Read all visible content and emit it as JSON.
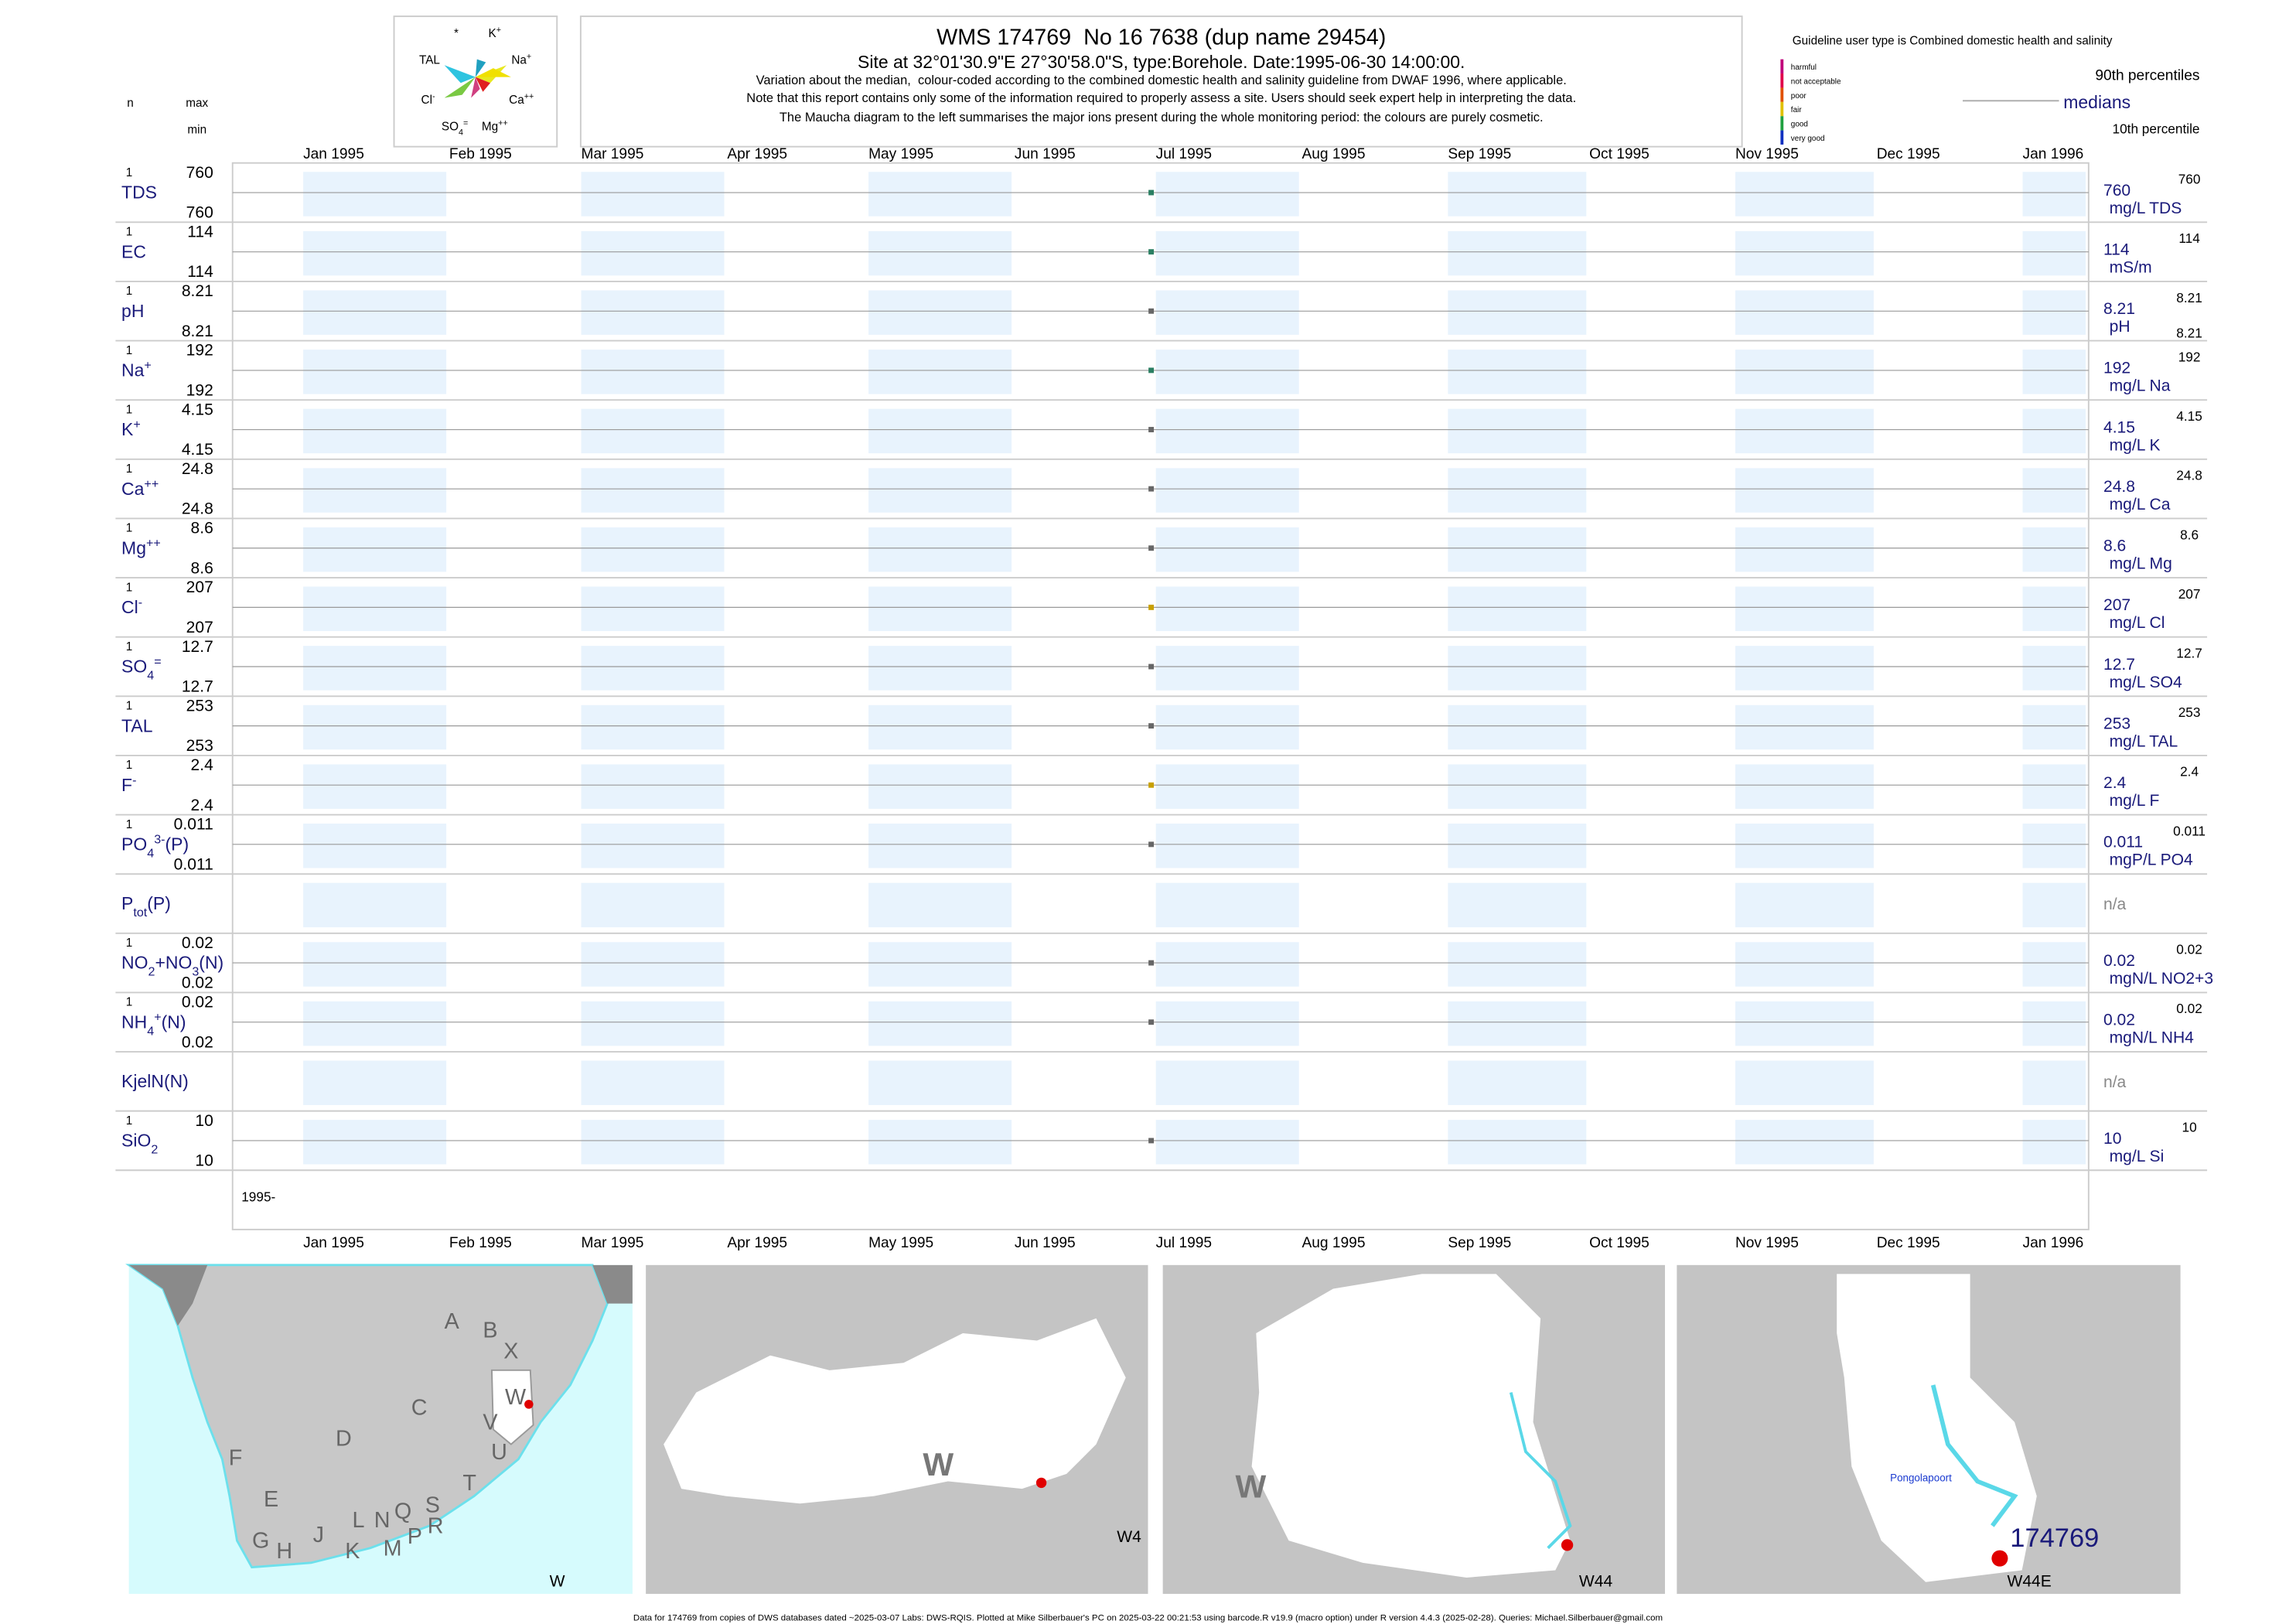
{
  "header": {
    "title": "WMS 174769  No 16 7638 (dup name 29454)",
    "subtitle": "Site at 32°01'30.9\"E 27°30'58.0\"S, type:Borehole. Date:1995-06-30 14:00:00.",
    "notes": [
      "Variation about the median,  colour-coded according to the combined domestic health and salinity guideline from DWAF 1996, where applicable.",
      "Note that this report contains only some of the information required to properly assess a site. Users should seek expert help in interpreting the data.",
      "The Maucha diagram to the left summarises the major ions present during the whole monitoring period: the colours are purely cosmetic."
    ],
    "col_n": "n",
    "col_max": "max",
    "col_min": "min"
  },
  "maucha": {
    "labels": [
      [
        {
          "text": "*"
        }
      ],
      [
        {
          "text": "K"
        },
        {
          "sup": "+"
        }
      ],
      [
        {
          "text": "TAL"
        }
      ],
      [
        {
          "text": "Na"
        },
        {
          "sup": "+"
        }
      ],
      [
        {
          "text": "Cl"
        },
        {
          "sup": "-"
        }
      ],
      [
        {
          "text": "Ca"
        },
        {
          "sup": "++"
        }
      ],
      [
        {
          "text": "SO"
        },
        {
          "sub": "4"
        },
        {
          "sup": "="
        }
      ],
      [
        {
          "text": "Mg"
        },
        {
          "sup": "++"
        }
      ]
    ]
  },
  "legend": {
    "guideline": "Guideline user type is Combined domestic health and salinity",
    "classes": [
      "harmful",
      "not acceptable",
      "poor",
      "fair",
      "good",
      "very good"
    ],
    "class_colors": [
      "#c0007a",
      "#e0004a",
      "#e05000",
      "#e0c000",
      "#20a040",
      "#1030c0"
    ],
    "p90": "90th percentiles",
    "median": "medians",
    "p10": "10th percentile"
  },
  "time_axis": {
    "xlim": [
      "1994-12-17",
      "1996-01-15"
    ],
    "ticks": [
      {
        "value": "1995-01-01",
        "label": "Jan 1995"
      },
      {
        "value": "1995-02-01",
        "label": "Feb 1995"
      },
      {
        "value": "1995-03-01",
        "label": "Mar 1995"
      },
      {
        "value": "1995-04-01",
        "label": "Apr 1995"
      },
      {
        "value": "1995-05-01",
        "label": "May 1995"
      },
      {
        "value": "1995-06-01",
        "label": "Jun 1995"
      },
      {
        "value": "1995-07-01",
        "label": "Jul 1995"
      },
      {
        "value": "1995-08-01",
        "label": "Aug 1995"
      },
      {
        "value": "1995-09-01",
        "label": "Sep 1995"
      },
      {
        "value": "1995-10-01",
        "label": "Oct 1995"
      },
      {
        "value": "1995-11-01",
        "label": "Nov 1995"
      },
      {
        "value": "1995-12-01",
        "label": "Dec 1995"
      },
      {
        "value": "1996-01-01",
        "label": "Jan 1996"
      }
    ],
    "year_label": "1995-",
    "sample_date": "1995-06-30"
  },
  "rows": [
    {
      "label": [
        {
          "text": "TDS"
        }
      ],
      "n": 1,
      "max": 760,
      "min": 760,
      "median": 760,
      "p90": 760,
      "unit": "mg/L TDS",
      "color": "#2a7f62"
    },
    {
      "label": [
        {
          "text": "EC"
        }
      ],
      "n": 1,
      "max": 114,
      "min": 114,
      "median": 114,
      "p90": 114,
      "unit": "mS/m",
      "color": "#2a7f62"
    },
    {
      "label": [
        {
          "text": "pH"
        }
      ],
      "n": 1,
      "max": 8.21,
      "min": 8.21,
      "median": 8.21,
      "p90": 8.21,
      "p10": 8.21,
      "unit": "pH",
      "color": "#666666"
    },
    {
      "label": [
        {
          "text": "Na"
        },
        {
          "sup": "+"
        }
      ],
      "n": 1,
      "max": 192,
      "min": 192,
      "median": 192,
      "p90": 192,
      "unit": "mg/L Na",
      "color": "#2a7f62"
    },
    {
      "label": [
        {
          "text": "K"
        },
        {
          "sup": "+"
        }
      ],
      "n": 1,
      "max": 4.15,
      "min": 4.15,
      "median": 4.15,
      "p90": 4.15,
      "unit": "mg/L K",
      "color": "#666666"
    },
    {
      "label": [
        {
          "text": "Ca"
        },
        {
          "sup": "++"
        }
      ],
      "n": 1,
      "max": 24.8,
      "min": 24.8,
      "median": 24.8,
      "p90": 24.8,
      "unit": "mg/L Ca",
      "color": "#666666"
    },
    {
      "label": [
        {
          "text": "Mg"
        },
        {
          "sup": "++"
        }
      ],
      "n": 1,
      "max": 8.6,
      "min": 8.6,
      "median": 8.6,
      "p90": 8.6,
      "unit": "mg/L Mg",
      "color": "#666666"
    },
    {
      "label": [
        {
          "text": "Cl"
        },
        {
          "sup": "-"
        }
      ],
      "n": 1,
      "max": 207,
      "min": 207,
      "median": 207,
      "p90": 207,
      "unit": "mg/L Cl",
      "color": "#c8a000"
    },
    {
      "label": [
        {
          "text": "SO"
        },
        {
          "sub": "4"
        },
        {
          "sup": "="
        }
      ],
      "n": 1,
      "max": 12.7,
      "min": 12.7,
      "median": 12.7,
      "p90": 12.7,
      "unit": "mg/L SO4",
      "color": "#666666"
    },
    {
      "label": [
        {
          "text": "TAL"
        }
      ],
      "n": 1,
      "max": 253,
      "min": 253,
      "median": 253,
      "p90": 253,
      "unit": "mg/L TAL",
      "color": "#666666"
    },
    {
      "label": [
        {
          "text": "F"
        },
        {
          "sup": "-"
        }
      ],
      "n": 1,
      "max": 2.4,
      "min": 2.4,
      "median": 2.4,
      "p90": 2.4,
      "unit": "mg/L F",
      "color": "#c8a000"
    },
    {
      "label": [
        {
          "text": "PO"
        },
        {
          "sub": "4"
        },
        {
          "sup": "3-"
        },
        {
          "text": "(P)"
        }
      ],
      "n": 1,
      "max": 0.011,
      "min": 0.011,
      "median": 0.011,
      "p90": 0.011,
      "unit": "mgP/L PO4",
      "color": "#666666"
    },
    {
      "label": [
        {
          "text": "P"
        },
        {
          "sub": "tot"
        },
        {
          "text": "(P)"
        }
      ],
      "na": "n/a"
    },
    {
      "label": [
        {
          "text": "NO"
        },
        {
          "sub": "2"
        },
        {
          "text": "+NO"
        },
        {
          "sub": "3"
        },
        {
          "text": "(N)"
        }
      ],
      "n": 1,
      "max": 0.02,
      "min": 0.02,
      "median": 0.02,
      "p90": 0.02,
      "unit": "mgN/L NO2+3",
      "color": "#666666"
    },
    {
      "label": [
        {
          "text": "NH"
        },
        {
          "sub": "4"
        },
        {
          "sup": "+"
        },
        {
          "text": "(N)"
        }
      ],
      "n": 1,
      "max": 0.02,
      "min": 0.02,
      "median": 0.02,
      "p90": 0.02,
      "unit": "mgN/L NH4",
      "color": "#666666"
    },
    {
      "label": [
        {
          "text": "KjelN(N)"
        }
      ],
      "na": "n/a"
    },
    {
      "label": [
        {
          "text": "SiO"
        },
        {
          "sub": "2"
        }
      ],
      "n": 1,
      "max": 10,
      "min": 10,
      "median": 10,
      "p90": 10,
      "unit": "mg/L Si",
      "color": "#666666"
    }
  ],
  "maps": {
    "regions": [
      "A",
      "B",
      "X",
      "W",
      "C",
      "V",
      "D",
      "U",
      "F",
      "T",
      "E",
      "S",
      "L",
      "N",
      "Q",
      "R",
      "G",
      "H",
      "J",
      "K",
      "M",
      "P"
    ],
    "map1_caption": "W",
    "map2_label": "W",
    "map2_caption": "W4",
    "map3_label": "W",
    "map3_caption": "W44",
    "dam": "Pongolapoort",
    "site": "174769",
    "map4_caption": "W44E"
  },
  "footer": "Data for 174769 from copies of DWS databases dated ~2025-03-07 Labs: DWS-RQIS. Plotted at Mike Silberbauer's PC on 2025-03-22 00:21:53 using barcode.R v19.9 (macro option) under R version 4.4.3 (2025-02-28). Queries: Michael.Silberbauer@gmail.com"
}
